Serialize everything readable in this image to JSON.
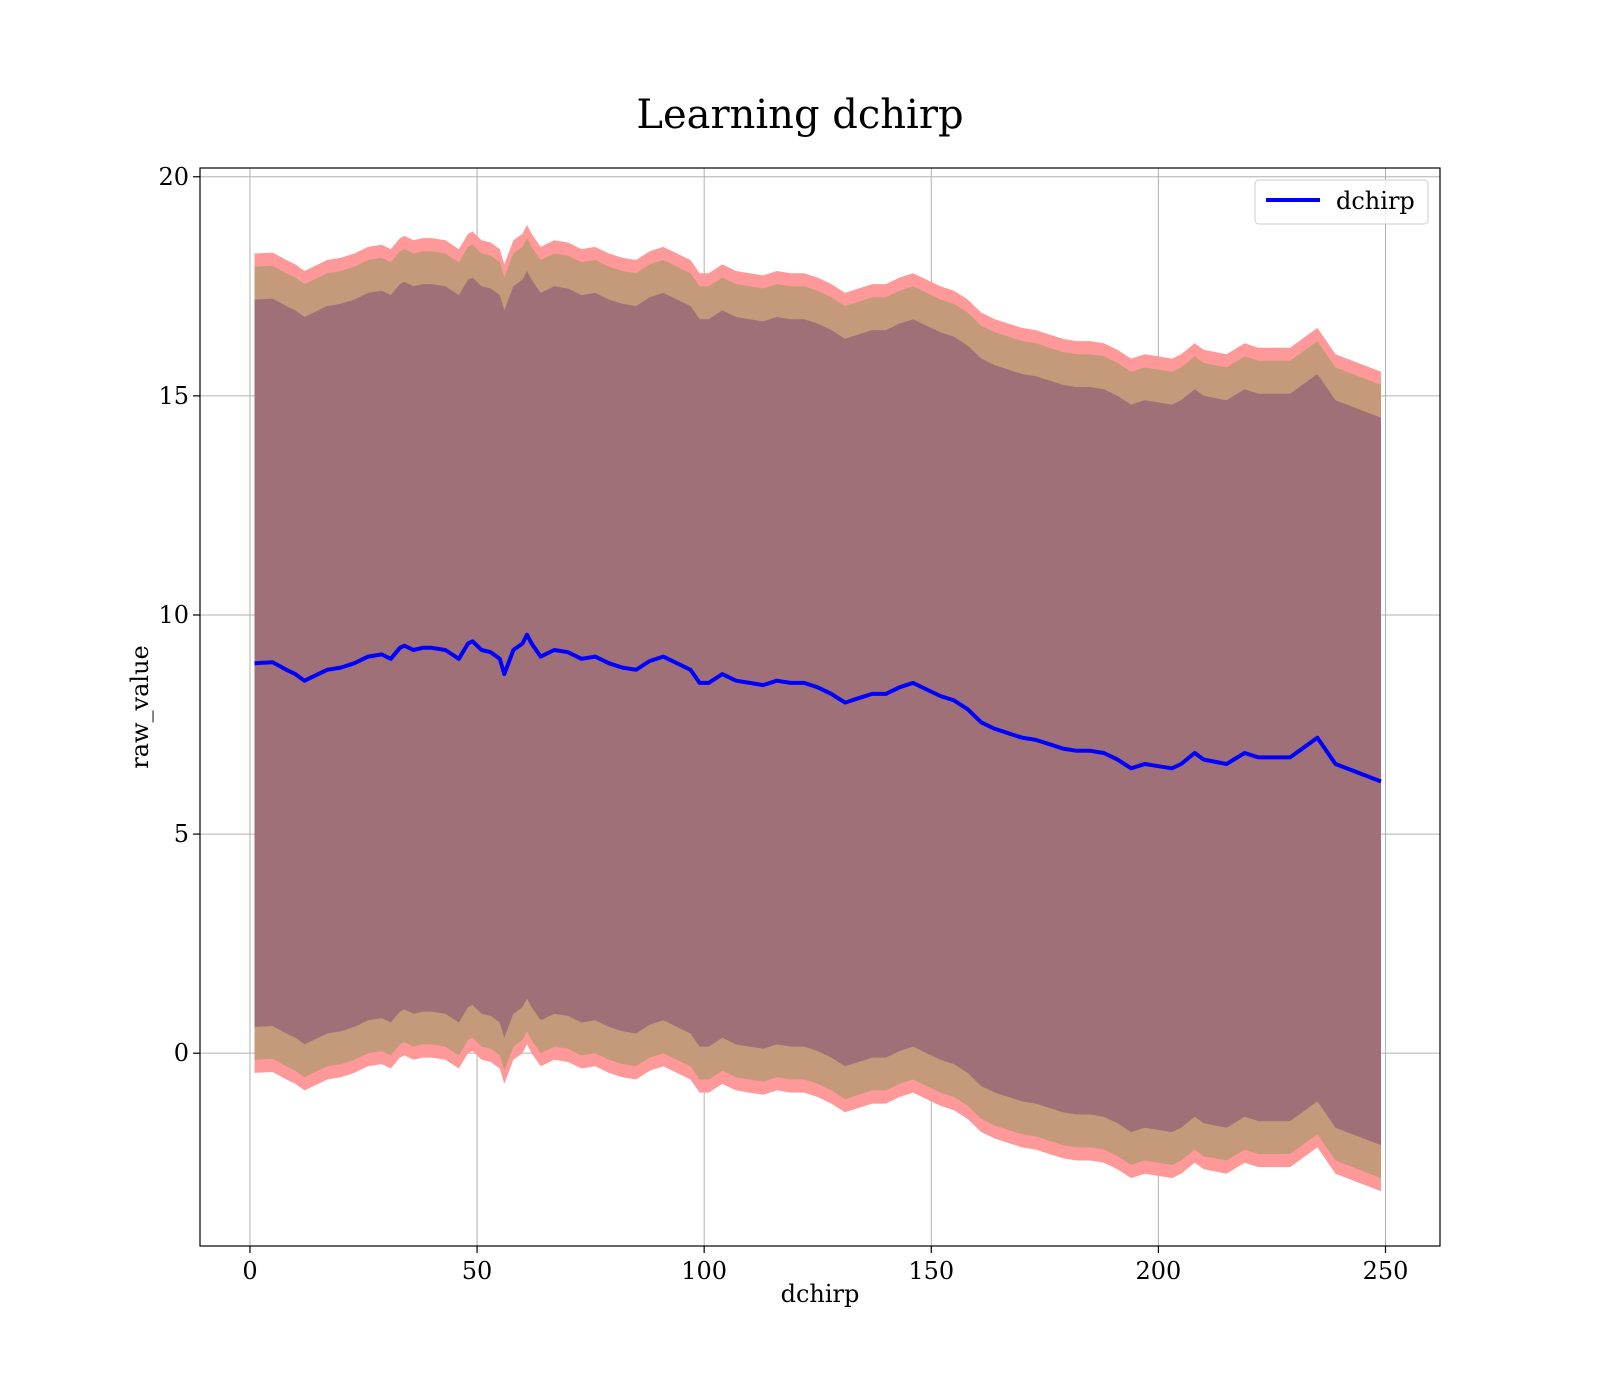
{
  "chart_data": {
    "type": "line",
    "title": "Learning dchirp",
    "xlabel": "dchirp",
    "ylabel": "raw_value",
    "xlim": [
      -11,
      262
    ],
    "ylim": [
      -4.4,
      20.2
    ],
    "xticks": [
      0,
      50,
      100,
      150,
      200,
      250
    ],
    "yticks": [
      0,
      5,
      10,
      15,
      20
    ],
    "grid": true,
    "legend_position": "top-right",
    "colors": {
      "line": "#0000ff",
      "band_outer": "#ff9999",
      "band_mid": "#c49a7a",
      "band_inner": "#a07078"
    },
    "series": [
      {
        "name": "dchirp",
        "x": [
          1,
          5,
          8,
          10,
          12,
          14,
          17,
          20,
          23,
          26,
          29,
          31,
          33,
          34,
          36,
          38,
          40,
          43,
          46,
          48,
          49,
          51,
          53,
          55,
          56,
          58,
          60,
          61,
          62,
          64,
          67,
          70,
          73,
          76,
          79,
          82,
          85,
          88,
          91,
          94,
          97,
          99,
          101,
          104,
          107,
          110,
          113,
          116,
          119,
          122,
          125,
          128,
          131,
          134,
          137,
          140,
          143,
          146,
          149,
          152,
          155,
          158,
          161,
          164,
          167,
          170,
          173,
          176,
          179,
          182,
          185,
          188,
          191,
          194,
          197,
          200,
          203,
          205,
          208,
          210,
          215,
          219,
          222,
          225,
          229,
          235,
          239,
          249
        ],
        "y": [
          8.9,
          8.92,
          8.75,
          8.65,
          8.5,
          8.6,
          8.75,
          8.8,
          8.9,
          9.05,
          9.1,
          9.0,
          9.25,
          9.3,
          9.2,
          9.25,
          9.25,
          9.2,
          9.0,
          9.35,
          9.4,
          9.2,
          9.15,
          9.0,
          8.65,
          9.2,
          9.35,
          9.55,
          9.35,
          9.05,
          9.2,
          9.15,
          9.0,
          9.05,
          8.9,
          8.8,
          8.75,
          8.95,
          9.05,
          8.9,
          8.75,
          8.45,
          8.45,
          8.65,
          8.5,
          8.45,
          8.4,
          8.5,
          8.45,
          8.45,
          8.35,
          8.2,
          8.0,
          8.1,
          8.2,
          8.2,
          8.35,
          8.45,
          8.3,
          8.15,
          8.05,
          7.85,
          7.55,
          7.4,
          7.3,
          7.2,
          7.15,
          7.05,
          6.95,
          6.9,
          6.9,
          6.85,
          6.7,
          6.5,
          6.6,
          6.55,
          6.5,
          6.6,
          6.85,
          6.7,
          6.6,
          6.85,
          6.75,
          6.75,
          6.75,
          7.2,
          6.6,
          6.2
        ]
      }
    ],
    "bands": {
      "inner_halfwidth": 8.3,
      "mid_halfwidth": 9.05,
      "outer_halfwidth": 9.35
    }
  }
}
